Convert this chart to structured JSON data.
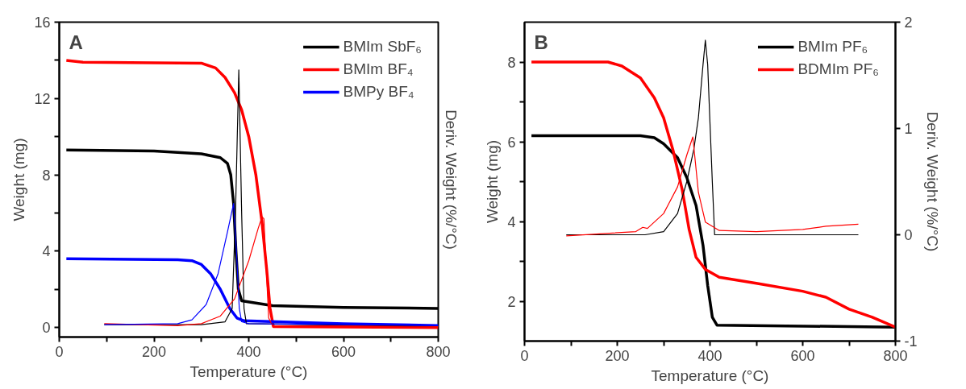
{
  "chart_data": [
    {
      "type": "line",
      "title": "A",
      "xlabel": "Temperature (°C)",
      "ylabel": "Weight (mg)",
      "y2label": "Deriv. Weight (%/°C)",
      "xlim": [
        0,
        800
      ],
      "ylim": [
        -0.5,
        16
      ],
      "xticks": [
        0,
        {
          "value": 100,
          "label": null
        },
        200,
        {
          "value": 300,
          "label": null
        },
        400,
        {
          "value": 500,
          "label": null
        },
        600,
        {
          "value": 700,
          "label": null
        },
        800
      ],
      "yticks": [
        0,
        {
          "value": 2,
          "label": null
        },
        4,
        {
          "value": 6,
          "label": null
        },
        8,
        {
          "value": 10,
          "label": null
        },
        12,
        {
          "value": 14,
          "label": null
        },
        16
      ],
      "legend": "top right",
      "grid": false,
      "series": [
        {
          "name": "BMIm SbF₆",
          "color": "#000000",
          "x": [
            15,
            200,
            300,
            340,
            355,
            362,
            368,
            373,
            378,
            385,
            450,
            600,
            800
          ],
          "values": [
            9.3,
            9.25,
            9.1,
            8.9,
            8.6,
            8.0,
            6.5,
            4.0,
            2.0,
            1.4,
            1.15,
            1.05,
            1.0
          ]
        },
        {
          "name": "BMIm BF₄",
          "color": "#ff0000",
          "x": [
            15,
            50,
            300,
            330,
            350,
            370,
            385,
            400,
            415,
            428,
            438,
            445,
            452,
            800
          ],
          "values": [
            14.0,
            13.9,
            13.85,
            13.6,
            13.1,
            12.3,
            11.4,
            10.0,
            8.0,
            5.5,
            3.0,
            1.0,
            0.05,
            0.0
          ]
        },
        {
          "name": "BMPy BF₄",
          "color": "#0000ff",
          "x": [
            15,
            250,
            280,
            300,
            320,
            340,
            360,
            375,
            390,
            600,
            800
          ],
          "values": [
            3.6,
            3.55,
            3.5,
            3.3,
            2.8,
            2.0,
            1.0,
            0.5,
            0.35,
            0.2,
            0.1
          ]
        },
        {
          "color": "#000000",
          "x": [
            95,
            300,
            350,
            365,
            372,
            379,
            385,
            390,
            395,
            800
          ],
          "values": [
            0.15,
            0.15,
            0.3,
            1.0,
            6.0,
            13.5,
            6.0,
            1.0,
            0.2,
            0.05
          ]
        },
        {
          "color": "#ff0000",
          "x": [
            95,
            250,
            300,
            340,
            370,
            400,
            420,
            428,
            432,
            437,
            442,
            450,
            800
          ],
          "values": [
            0.2,
            0.1,
            0.2,
            0.6,
            1.5,
            3.5,
            5.2,
            5.8,
            5.7,
            3.0,
            0.5,
            0.1,
            0.05
          ]
        },
        {
          "color": "#0000ff",
          "x": [
            95,
            250,
            280,
            310,
            335,
            355,
            368,
            374,
            380,
            385,
            400,
            800
          ],
          "values": [
            0.15,
            0.2,
            0.4,
            1.2,
            2.8,
            5.0,
            6.5,
            4.0,
            1.0,
            0.3,
            0.2,
            0.1
          ]
        }
      ]
    },
    {
      "type": "line",
      "title": "B",
      "xlabel": "Temperature (°C)",
      "ylabel": "Weight (mg)",
      "y2label": "Deriv. Weight (%/°C)",
      "xlim": [
        0,
        800
      ],
      "ylim": [
        1,
        9
      ],
      "y2lim": [
        -1,
        2
      ],
      "xticks": [
        0,
        {
          "value": 100,
          "label": null
        },
        200,
        {
          "value": 300,
          "label": null
        },
        400,
        {
          "value": 500,
          "label": null
        },
        600,
        {
          "value": 700,
          "label": null
        },
        800
      ],
      "yticks": [
        2,
        {
          "value": 3,
          "label": null
        },
        4,
        {
          "value": 5,
          "label": null
        },
        6,
        {
          "value": 7,
          "label": null
        },
        8
      ],
      "y2ticks": [
        -1,
        0,
        1,
        2
      ],
      "legend": "top right",
      "grid": false,
      "series": [
        {
          "name": "BMIm PF₆",
          "color": "#000000",
          "x": [
            15,
            250,
            280,
            300,
            330,
            350,
            370,
            385,
            395,
            405,
            415,
            800
          ],
          "values": [
            6.15,
            6.15,
            6.1,
            5.95,
            5.6,
            5.1,
            4.4,
            3.4,
            2.4,
            1.6,
            1.4,
            1.35
          ]
        },
        {
          "name": "BDMIm PF₆",
          "color": "#ff0000",
          "x": [
            15,
            180,
            210,
            250,
            280,
            300,
            320,
            340,
            355,
            370,
            390,
            420,
            500,
            600,
            650,
            700,
            750,
            800
          ],
          "values": [
            8.0,
            8.0,
            7.9,
            7.6,
            7.1,
            6.6,
            5.8,
            4.8,
            3.8,
            3.1,
            2.8,
            2.6,
            2.45,
            2.25,
            2.1,
            1.8,
            1.6,
            1.35
          ]
        },
        {
          "color": "#000000",
          "axis": "y2",
          "x": [
            90,
            260,
            300,
            330,
            350,
            365,
            375,
            385,
            390,
            395,
            405,
            410,
            720
          ],
          "values": [
            0.0,
            0.0,
            0.03,
            0.2,
            0.5,
            0.8,
            1.1,
            1.6,
            1.83,
            1.6,
            0.5,
            0.0,
            0.0
          ]
        },
        {
          "color": "#ff0000",
          "axis": "y2",
          "x": [
            90,
            240,
            255,
            265,
            300,
            330,
            350,
            363,
            375,
            390,
            420,
            500,
            600,
            650,
            720
          ],
          "values": [
            -0.01,
            0.03,
            0.07,
            0.06,
            0.2,
            0.45,
            0.75,
            0.92,
            0.4,
            0.12,
            0.04,
            0.03,
            0.05,
            0.08,
            0.1
          ]
        }
      ]
    }
  ]
}
